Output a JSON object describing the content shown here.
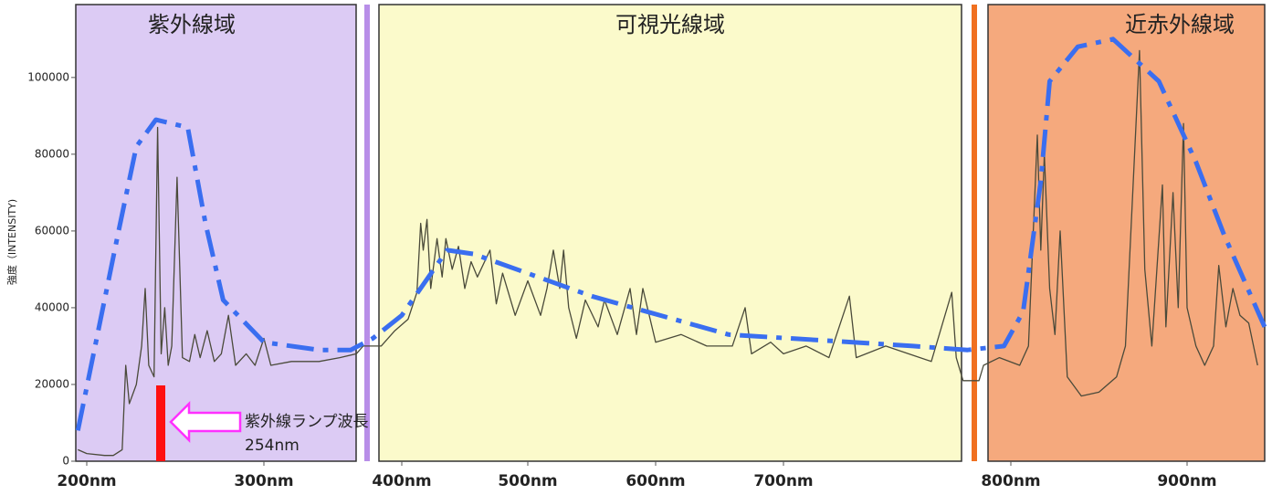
{
  "chart_data": {
    "type": "line",
    "ylabel": "強度（INTENSITY)",
    "annotations": [
      "紫外線域",
      "可視光線域",
      "近赤外線域",
      "紫外線ランプ波長",
      "254nm"
    ],
    "xlim": [
      194,
      944
    ],
    "ylim": [
      0,
      119000
    ],
    "xticks": [
      {
        "value": 200,
        "label": "200nm"
      },
      {
        "value": 300,
        "label": "300nm"
      },
      {
        "value": 400,
        "label": "400nm"
      },
      {
        "value": 500,
        "label": "500nm"
      },
      {
        "value": 600,
        "label": "600nm"
      },
      {
        "value": 700,
        "label": "700nm"
      },
      {
        "value": 800,
        "label": "800nm"
      },
      {
        "value": 900,
        "label": "900nm"
      }
    ],
    "yticks": [
      0,
      20000,
      40000,
      60000,
      80000,
      100000
    ],
    "series": [
      {
        "color": "#4a4a3a",
        "dashed": false,
        "x": [
          195,
          200,
          210,
          215,
          220,
          222,
          224,
          228,
          231,
          233,
          235,
          238,
          240,
          242,
          244,
          246,
          248,
          251,
          254,
          258,
          261,
          264,
          268,
          272,
          276,
          280,
          284,
          290,
          295,
          300,
          305,
          320,
          340,
          355,
          367,
          372,
          385,
          395,
          405,
          412,
          415,
          417,
          420,
          423,
          428,
          432,
          435,
          440,
          445,
          450,
          455,
          460,
          470,
          475,
          480,
          490,
          500,
          510,
          515,
          520,
          525,
          528,
          532,
          538,
          545,
          555,
          560,
          570,
          580,
          585,
          590,
          600,
          620,
          640,
          660,
          670,
          675,
          690,
          700,
          710,
          720,
          729,
          732,
          745,
          755,
          765,
          774,
          776,
          779,
          786,
          788,
          795,
          805,
          810,
          815,
          817,
          819,
          822,
          825,
          828,
          832,
          840,
          850,
          860,
          865,
          873,
          876,
          880,
          886,
          888,
          892,
          895,
          898,
          900,
          905,
          910,
          915,
          918,
          922,
          926,
          930,
          935,
          940
        ],
        "values": [
          3000,
          2000,
          1500,
          1500,
          3000,
          25000,
          15000,
          20000,
          30000,
          45000,
          25000,
          22000,
          87000,
          28000,
          40000,
          25000,
          30000,
          74000,
          27000,
          26000,
          33000,
          27000,
          34000,
          26000,
          28000,
          38000,
          25000,
          28000,
          25000,
          32000,
          25000,
          26000,
          26000,
          27000,
          28000,
          30000,
          30000,
          34000,
          37000,
          44000,
          62000,
          55000,
          63000,
          45000,
          58000,
          48000,
          58000,
          50000,
          56000,
          45000,
          52000,
          48000,
          55000,
          41000,
          49000,
          38000,
          47000,
          38000,
          45000,
          55000,
          45000,
          55000,
          40000,
          32000,
          42000,
          35000,
          42000,
          33000,
          45000,
          33000,
          45000,
          31000,
          33000,
          30000,
          30000,
          40000,
          28000,
          31000,
          28000,
          30000,
          27000,
          43000,
          27000,
          30000,
          28000,
          26000,
          44000,
          27000,
          21000,
          21000,
          25000,
          27000,
          25000,
          30000,
          85000,
          55000,
          80000,
          45000,
          33000,
          60000,
          22000,
          17000,
          18000,
          22000,
          30000,
          107000,
          50000,
          30000,
          72000,
          35000,
          70000,
          40000,
          88000,
          40000,
          30000,
          25000,
          30000,
          51000,
          35000,
          45000,
          38000,
          36000,
          25000
        ]
      },
      {
        "color": "#3a6ef0",
        "dashed": true,
        "x": [
          195,
          218,
          228,
          239,
          257,
          267,
          277,
          300,
          340,
          363,
          379,
          400,
          436,
          457,
          550,
          657,
          757,
          781,
          797,
          807,
          817,
          822,
          838,
          858,
          884,
          905,
          921,
          944
        ],
        "values": [
          8000,
          60000,
          82000,
          89000,
          87000,
          62000,
          42000,
          31000,
          29000,
          29000,
          32000,
          38000,
          55000,
          54000,
          43000,
          33000,
          30000,
          29000,
          30000,
          39000,
          73000,
          99000,
          108000,
          110000,
          99000,
          78000,
          59000,
          35000
        ]
      }
    ]
  }
}
